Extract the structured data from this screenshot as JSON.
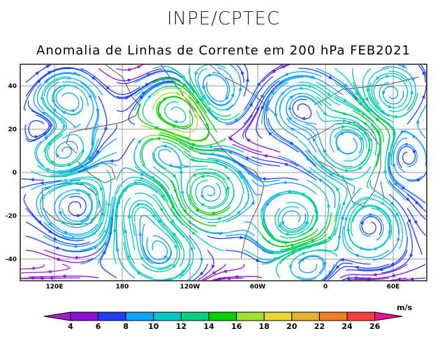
{
  "header": {
    "org": "INPE/CPTEC"
  },
  "title": "Anomalia de Linhas de Corrente em 200 hPa FEB2021",
  "chart_data": {
    "type": "streamline",
    "title": "Anomalia de Linhas de Corrente em 200 hPa FEB2021",
    "lat_range": [
      -50,
      50
    ],
    "lon_range": [
      "90E",
      "90E"
    ],
    "y_ticks": [
      "40",
      "20",
      "0",
      "-20",
      "-40"
    ],
    "x_ticks": [
      "120E",
      "180",
      "120W",
      "60W",
      "0",
      "60E"
    ],
    "grid": true,
    "colorbar": {
      "unit": "m/s",
      "levels": [
        "4",
        "6",
        "8",
        "10",
        "12",
        "14",
        "16",
        "18",
        "20",
        "22",
        "24",
        "26"
      ],
      "colors": [
        "#a020c8",
        "#8a10d8",
        "#2040ff",
        "#10a0ff",
        "#00c8c8",
        "#00d080",
        "#00d000",
        "#a0e030",
        "#e8d830",
        "#e8b030",
        "#f08020",
        "#f84040",
        "#f01090"
      ]
    }
  }
}
